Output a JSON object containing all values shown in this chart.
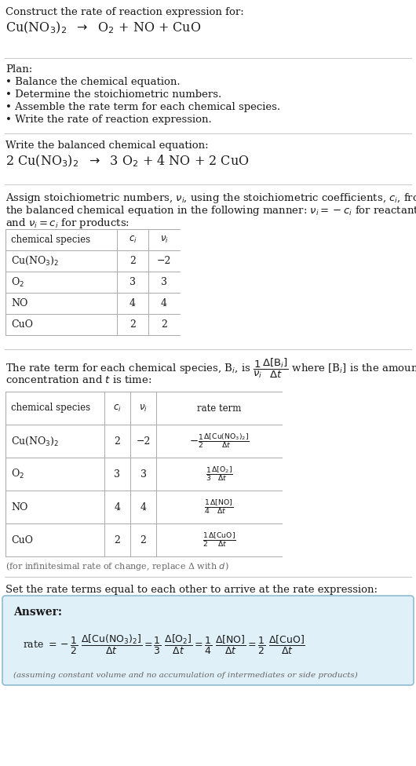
{
  "bg_color": "#ffffff",
  "text_color": "#1a1a1a",
  "gray_text": "#666666",
  "answer_bg": "#e0f0f8",
  "answer_border": "#90bcd0",
  "line_color": "#cccccc",
  "table_line_color": "#aaaaaa",
  "section1_title": "Construct the rate of reaction expression for:",
  "plan_title": "Plan:",
  "plan_items": [
    "• Balance the chemical equation.",
    "• Determine the stoichiometric numbers.",
    "• Assemble the rate term for each chemical species.",
    "• Write the rate of reaction expression."
  ],
  "balanced_title": "Write the balanced chemical equation:",
  "table1_headers": [
    "chemical species",
    "$c_i$",
    "$\\nu_i$"
  ],
  "table1_rows": [
    [
      "Cu(NO$_3$)$_2$",
      "2",
      "−2"
    ],
    [
      "O$_2$",
      "3",
      "3"
    ],
    [
      "NO",
      "4",
      "4"
    ],
    [
      "CuO",
      "2",
      "2"
    ]
  ],
  "table2_headers": [
    "chemical species",
    "$c_i$",
    "$\\nu_i$",
    "rate term"
  ],
  "table2_rows": [
    [
      "Cu(NO$_3$)$_2$",
      "2",
      "−2"
    ],
    [
      "O$_2$",
      "3",
      "3"
    ],
    [
      "NO",
      "4",
      "4"
    ],
    [
      "CuO",
      "2",
      "2"
    ]
  ],
  "table2_rate_terms": [
    "$-\\frac{1}{2}\\frac{\\Delta[\\mathrm{Cu(NO_3)_2}]}{\\Delta t}$",
    "$\\frac{1}{3}\\frac{\\Delta[\\mathrm{O_2}]}{\\Delta t}$",
    "$\\frac{1}{4}\\frac{\\Delta[\\mathrm{NO}]}{\\Delta t}$",
    "$\\frac{1}{2}\\frac{\\Delta[\\mathrm{CuO}]}{\\Delta t}$"
  ],
  "infinitesimal_note": "(for infinitesimal rate of change, replace Δ with $d$)",
  "set_text": "Set the rate terms equal to each other to arrive at the rate expression:",
  "answer_label": "Answer:",
  "answer_note": "(assuming constant volume and no accumulation of intermediates or side products)"
}
